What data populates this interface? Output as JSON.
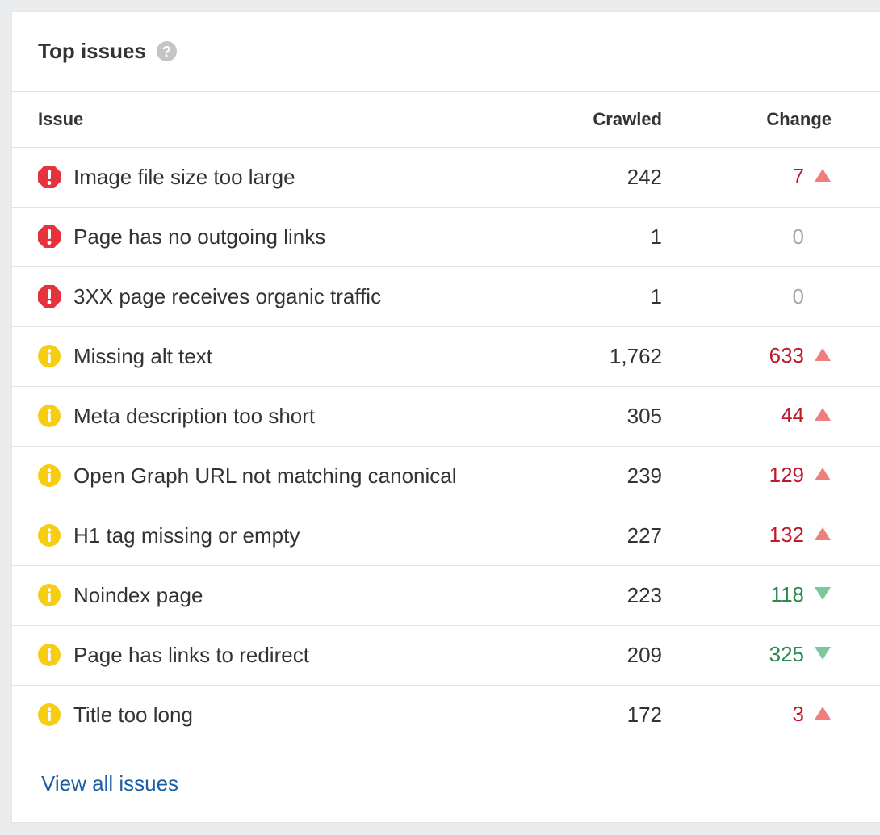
{
  "panel": {
    "title": "Top issues",
    "help_icon": "question-mark-icon"
  },
  "table": {
    "headers": {
      "issue": "Issue",
      "crawled": "Crawled",
      "change": "Change"
    },
    "rows": [
      {
        "severity": "error",
        "issue": "Image file size too large",
        "crawled": "242",
        "change": "7",
        "trend": "up"
      },
      {
        "severity": "error",
        "issue": "Page has no outgoing links",
        "crawled": "1",
        "change": "0",
        "trend": "none"
      },
      {
        "severity": "error",
        "issue": "3XX page receives organic traffic",
        "crawled": "1",
        "change": "0",
        "trend": "none"
      },
      {
        "severity": "warning",
        "issue": "Missing alt text",
        "crawled": "1,762",
        "change": "633",
        "trend": "up"
      },
      {
        "severity": "warning",
        "issue": "Meta description too short",
        "crawled": "305",
        "change": "44",
        "trend": "up"
      },
      {
        "severity": "warning",
        "issue": "Open Graph URL not matching canonical",
        "crawled": "239",
        "change": "129",
        "trend": "up"
      },
      {
        "severity": "warning",
        "issue": "H1 tag missing or empty",
        "crawled": "227",
        "change": "132",
        "trend": "up"
      },
      {
        "severity": "warning",
        "issue": "Noindex page",
        "crawled": "223",
        "change": "118",
        "trend": "down"
      },
      {
        "severity": "warning",
        "issue": "Page has links to redirect",
        "crawled": "209",
        "change": "325",
        "trend": "down"
      },
      {
        "severity": "warning",
        "issue": "Title too long",
        "crawled": "172",
        "change": "3",
        "trend": "up"
      }
    ]
  },
  "footer": {
    "view_all_label": "View all issues"
  },
  "colors": {
    "error": "#e5333d",
    "warning": "#f7cd12",
    "up_text": "#c0182b",
    "up_arrow": "#ef7f7f",
    "down_text": "#2a8a4f",
    "down_arrow": "#7cc79b",
    "zero_text": "#a9a9a9",
    "link": "#1d5fa3"
  }
}
